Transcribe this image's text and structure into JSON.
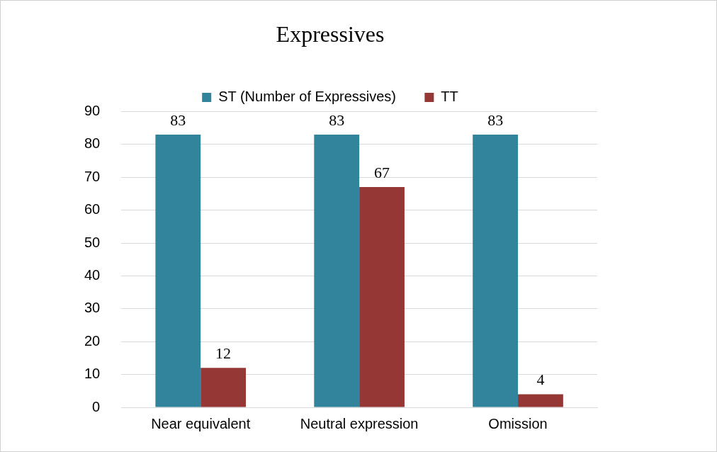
{
  "chart_data": {
    "type": "bar",
    "title": "Expressives",
    "categories": [
      "Near equivalent",
      "Neutral expression",
      "Omission"
    ],
    "series": [
      {
        "name": "ST (Number of Expressives)",
        "color": "#31849b",
        "values": [
          83,
          83,
          83
        ]
      },
      {
        "name": "TT",
        "color": "#953735",
        "values": [
          12,
          67,
          4
        ]
      }
    ],
    "ylim": [
      0,
      90
    ],
    "yticks": [
      0,
      10,
      20,
      30,
      40,
      50,
      60,
      70,
      80,
      90
    ],
    "grid": "y",
    "legend": "top",
    "data_labels": true
  }
}
